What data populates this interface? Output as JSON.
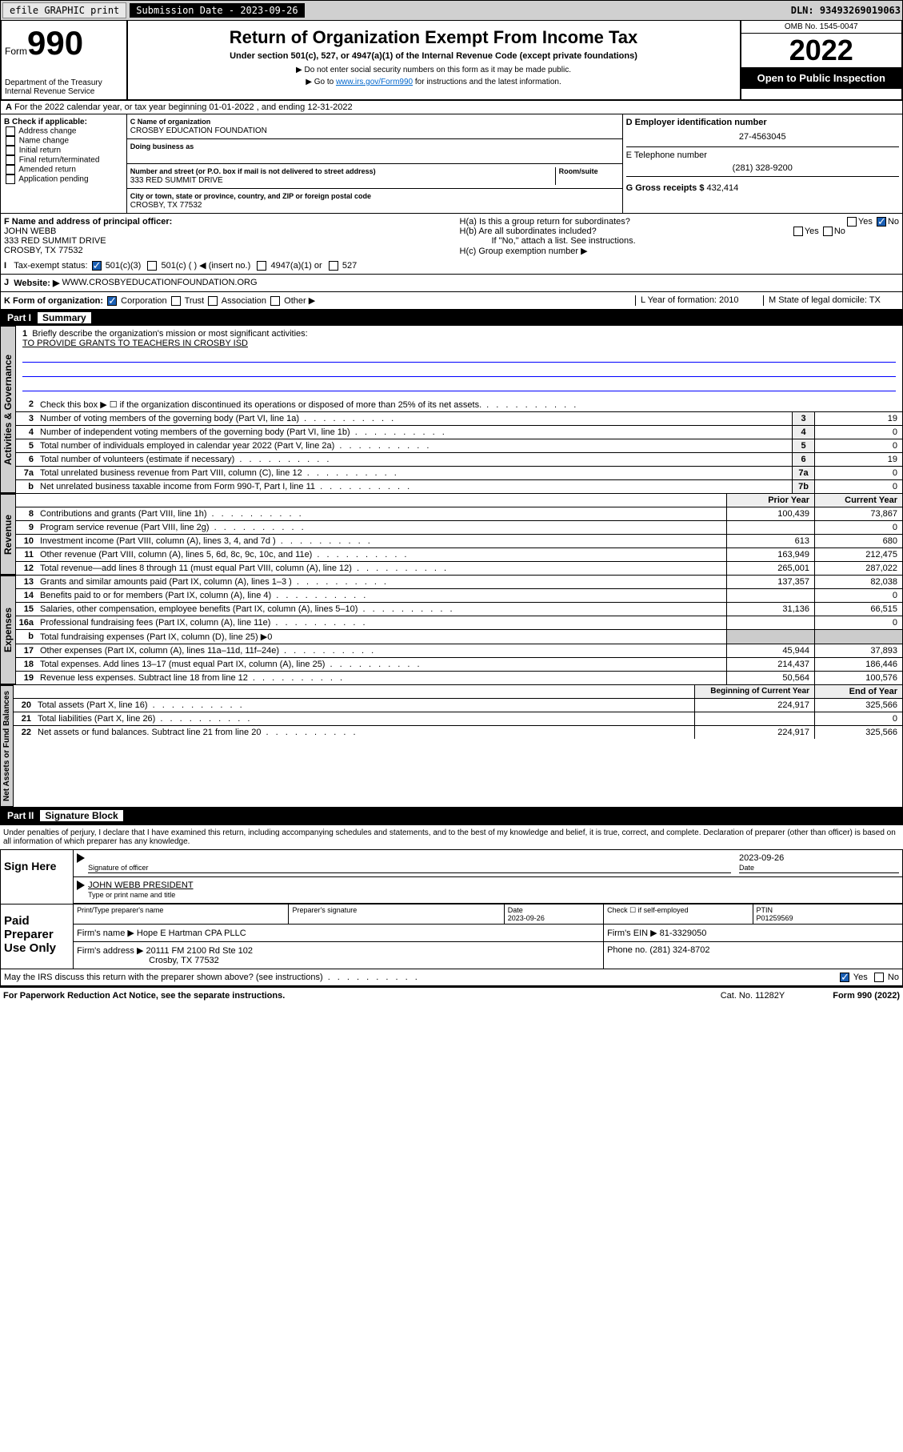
{
  "top": {
    "efile": "efile GRAPHIC print",
    "sub_label": "Submission Date - 2023-09-26",
    "dln": "DLN: 93493269019063"
  },
  "header": {
    "form": "Form",
    "num": "990",
    "dept": "Department of the Treasury Internal Revenue Service",
    "title": "Return of Organization Exempt From Income Tax",
    "sub1": "Under section 501(c), 527, or 4947(a)(1) of the Internal Revenue Code (except private foundations)",
    "sub2": "▶ Do not enter social security numbers on this form as it may be made public.",
    "sub3_a": "▶ Go to ",
    "sub3_link": "www.irs.gov/Form990",
    "sub3_b": " for instructions and the latest information.",
    "omb": "OMB No. 1545-0047",
    "year": "2022",
    "open": "Open to Public Inspection"
  },
  "A": {
    "text": "For the 2022 calendar year, or tax year beginning 01-01-2022    , and ending 12-31-2022"
  },
  "B": {
    "label": "B Check if applicable:",
    "items": [
      "Address change",
      "Name change",
      "Initial return",
      "Final return/terminated",
      "Amended return",
      "Application pending"
    ]
  },
  "C": {
    "name_lbl": "C Name of organization",
    "name": "CROSBY EDUCATION FOUNDATION",
    "dba_lbl": "Doing business as",
    "dba": "",
    "street_lbl": "Number and street (or P.O. box if mail is not delivered to street address)",
    "room_lbl": "Room/suite",
    "street": "333 RED SUMMIT DRIVE",
    "city_lbl": "City or town, state or province, country, and ZIP or foreign postal code",
    "city": "CROSBY, TX  77532"
  },
  "D": {
    "lbl": "D Employer identification number",
    "val": "27-4563045"
  },
  "E": {
    "lbl": "E Telephone number",
    "val": "(281) 328-9200"
  },
  "G": {
    "lbl": "G Gross receipts $",
    "val": "432,414"
  },
  "F": {
    "lbl": "F  Name and address of principal officer:",
    "name": "JOHN WEBB",
    "addr": "333 RED SUMMIT DRIVE",
    "city": "CROSBY, TX  77532"
  },
  "H": {
    "a": "H(a)  Is this a group return for subordinates?",
    "b": "H(b)  Are all subordinates included?",
    "b_note": "If \"No,\" attach a list. See instructions.",
    "c": "H(c)  Group exemption number ▶"
  },
  "I": {
    "lbl": "Tax-exempt status:",
    "opts": [
      "501(c)(3)",
      "501(c) (  ) ◀ (insert no.)",
      "4947(a)(1) or",
      "527"
    ]
  },
  "J": {
    "lbl": "Website: ▶",
    "val": "WWW.CROSBYEDUCATIONFOUNDATION.ORG"
  },
  "K": {
    "lbl": "K Form of organization:",
    "opts": [
      "Corporation",
      "Trust",
      "Association",
      "Other ▶"
    ]
  },
  "L": {
    "lbl": "L Year of formation: 2010"
  },
  "M": {
    "lbl": "M State of legal domicile: TX"
  },
  "partI": {
    "num": "Part I",
    "title": "Summary",
    "tab": "Activities & Governance"
  },
  "mission": {
    "q": "Briefly describe the organization's mission or most significant activities:",
    "text": "TO PROVIDE GRANTS TO TEACHERS IN CROSBY ISD"
  },
  "lines_gov": [
    {
      "n": "2",
      "t": "Check this box ▶ ☐  if the organization discontinued its operations or disposed of more than 25% of its net assets.",
      "box": "",
      "v": ""
    },
    {
      "n": "3",
      "t": "Number of voting members of the governing body (Part VI, line 1a)",
      "box": "3",
      "v": "19"
    },
    {
      "n": "4",
      "t": "Number of independent voting members of the governing body (Part VI, line 1b)",
      "box": "4",
      "v": "0"
    },
    {
      "n": "5",
      "t": "Total number of individuals employed in calendar year 2022 (Part V, line 2a)",
      "box": "5",
      "v": "0"
    },
    {
      "n": "6",
      "t": "Total number of volunteers (estimate if necessary)",
      "box": "6",
      "v": "19"
    },
    {
      "n": "7a",
      "t": "Total unrelated business revenue from Part VIII, column (C), line 12",
      "box": "7a",
      "v": "0"
    },
    {
      "n": "b",
      "t": "Net unrelated business taxable income from Form 990-T, Part I, line 11",
      "box": "7b",
      "v": "0"
    }
  ],
  "rev": {
    "tab": "Revenue",
    "hdr1": "Prior Year",
    "hdr2": "Current Year",
    "rows": [
      {
        "n": "8",
        "t": "Contributions and grants (Part VIII, line 1h)",
        "p": "100,439",
        "c": "73,867"
      },
      {
        "n": "9",
        "t": "Program service revenue (Part VIII, line 2g)",
        "p": "",
        "c": "0"
      },
      {
        "n": "10",
        "t": "Investment income (Part VIII, column (A), lines 3, 4, and 7d )",
        "p": "613",
        "c": "680"
      },
      {
        "n": "11",
        "t": "Other revenue (Part VIII, column (A), lines 5, 6d, 8c, 9c, 10c, and 11e)",
        "p": "163,949",
        "c": "212,475"
      },
      {
        "n": "12",
        "t": "Total revenue—add lines 8 through 11 (must equal Part VIII, column (A), line 12)",
        "p": "265,001",
        "c": "287,022"
      }
    ]
  },
  "exp": {
    "tab": "Expenses",
    "rows": [
      {
        "n": "13",
        "t": "Grants and similar amounts paid (Part IX, column (A), lines 1–3 )",
        "p": "137,357",
        "c": "82,038"
      },
      {
        "n": "14",
        "t": "Benefits paid to or for members (Part IX, column (A), line 4)",
        "p": "",
        "c": "0"
      },
      {
        "n": "15",
        "t": "Salaries, other compensation, employee benefits (Part IX, column (A), lines 5–10)",
        "p": "31,136",
        "c": "66,515"
      },
      {
        "n": "16a",
        "t": "Professional fundraising fees (Part IX, column (A), line 11e)",
        "p": "",
        "c": "0"
      },
      {
        "n": "b",
        "t": "Total fundraising expenses (Part IX, column (D), line 25) ▶0",
        "p": "—",
        "c": "—"
      },
      {
        "n": "17",
        "t": "Other expenses (Part IX, column (A), lines 11a–11d, 11f–24e)",
        "p": "45,944",
        "c": "37,893"
      },
      {
        "n": "18",
        "t": "Total expenses. Add lines 13–17 (must equal Part IX, column (A), line 25)",
        "p": "214,437",
        "c": "186,446"
      },
      {
        "n": "19",
        "t": "Revenue less expenses. Subtract line 18 from line 12",
        "p": "50,564",
        "c": "100,576"
      }
    ]
  },
  "net": {
    "tab": "Net Assets or Fund Balances",
    "hdr1": "Beginning of Current Year",
    "hdr2": "End of Year",
    "rows": [
      {
        "n": "20",
        "t": "Total assets (Part X, line 16)",
        "p": "224,917",
        "c": "325,566"
      },
      {
        "n": "21",
        "t": "Total liabilities (Part X, line 26)",
        "p": "",
        "c": "0"
      },
      {
        "n": "22",
        "t": "Net assets or fund balances. Subtract line 21 from line 20",
        "p": "224,917",
        "c": "325,566"
      }
    ]
  },
  "partII": {
    "num": "Part II",
    "title": "Signature Block"
  },
  "decl": "Under penalties of perjury, I declare that I have examined this return, including accompanying schedules and statements, and to the best of my knowledge and belief, it is true, correct, and complete. Declaration of preparer (other than officer) is based on all information of which preparer has any knowledge.",
  "sign": {
    "here": "Sign Here",
    "sig_lbl": "Signature of officer",
    "date": "2023-09-26",
    "date_lbl": "Date",
    "name": "JOHN WEBB  PRESIDENT",
    "name_lbl": "Type or print name and title"
  },
  "paid": {
    "here": "Paid Preparer Use Only",
    "cols": [
      "Print/Type preparer's name",
      "Preparer's signature",
      "Date",
      "",
      "PTIN"
    ],
    "date": "2023-09-26",
    "self": "Check ☐ if self-employed",
    "ptin": "P01259569",
    "firm_lbl": "Firm's name     ▶",
    "firm": "Hope E Hartman CPA PLLC",
    "ein_lbl": "Firm's EIN ▶",
    "ein": "81-3329050",
    "addr_lbl": "Firm's address ▶",
    "addr": "20111 FM 2100 Rd Ste 102",
    "city": "Crosby, TX  77532",
    "phone_lbl": "Phone no.",
    "phone": "(281) 324-8702"
  },
  "discuss": "May the IRS discuss this return with the preparer shown above? (see instructions)",
  "footer": {
    "l": "For Paperwork Reduction Act Notice, see the separate instructions.",
    "m": "Cat. No. 11282Y",
    "r": "Form 990 (2022)"
  }
}
